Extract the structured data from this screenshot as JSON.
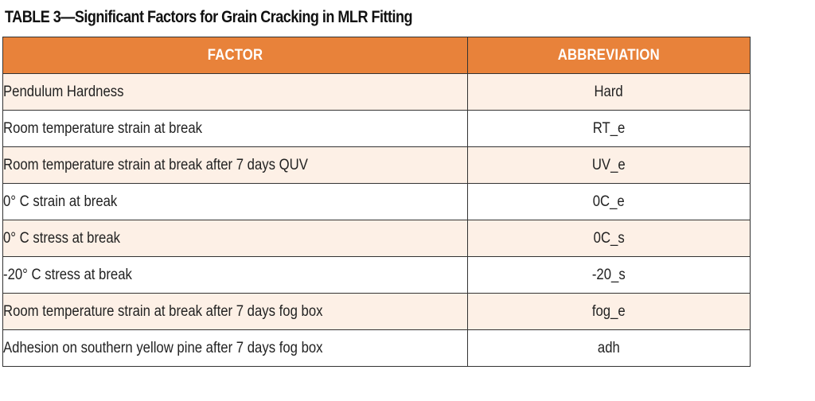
{
  "title": "TABLE 3—Significant Factors for Grain Cracking in MLR Fitting",
  "colors": {
    "header_bg": "#e8823a",
    "header_text": "#ffffff",
    "row_tint": "#fdf0e6",
    "row_plain": "#ffffff",
    "border": "#333333"
  },
  "table": {
    "headers": [
      "FACTOR",
      "ABBREVIATION"
    ],
    "rows": [
      [
        "Pendulum Hardness",
        "Hard"
      ],
      [
        "Room temperature strain at break",
        "RT_e"
      ],
      [
        "Room temperature strain at break after 7 days QUV",
        "UV_e"
      ],
      [
        "0° C strain at break",
        "0C_e"
      ],
      [
        "0° C stress at break",
        "0C_s"
      ],
      [
        "-20° C stress at break",
        "-20_s"
      ],
      [
        "Room temperature strain at break after 7 days fog box",
        "fog_e"
      ],
      [
        "Adhesion on southern yellow pine after 7 days fog box",
        "adh"
      ]
    ]
  }
}
